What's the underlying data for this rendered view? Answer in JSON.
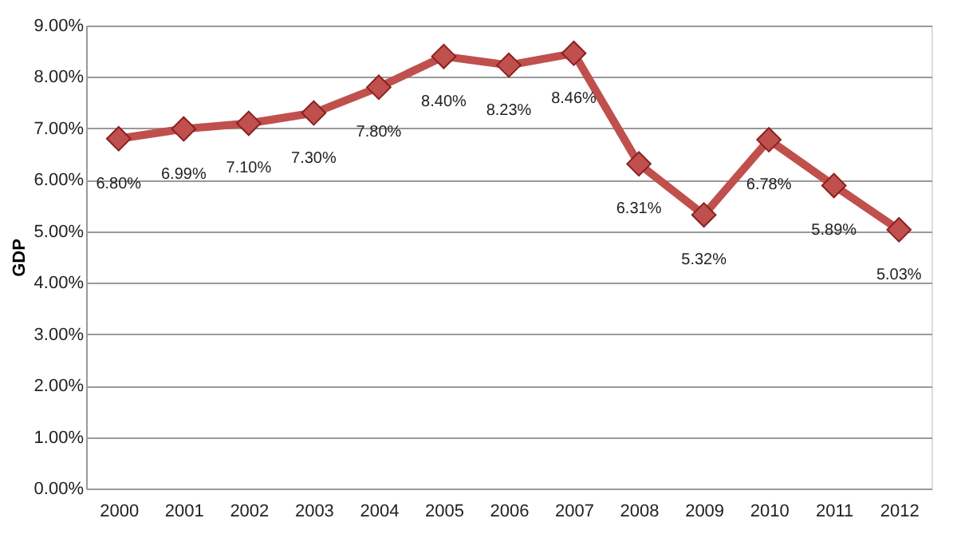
{
  "chart_data": {
    "type": "line",
    "ylabel": "GDP",
    "categories": [
      "2000",
      "2001",
      "2002",
      "2003",
      "2004",
      "2005",
      "2006",
      "2007",
      "2008",
      "2009",
      "2010",
      "2011",
      "2012"
    ],
    "series": [
      {
        "color": "#c0504d",
        "values": [
          6.8,
          6.99,
          7.1,
          7.3,
          7.8,
          8.4,
          8.23,
          8.46,
          6.31,
          5.32,
          6.78,
          5.89,
          5.03
        ],
        "value_labels": [
          "6.80%",
          "6.99%",
          "7.10%",
          "7.30%",
          "7.80%",
          "8.40%",
          "8.23%",
          "8.46%",
          "6.31%",
          "5.32%",
          "6.78%",
          "5.89%",
          "5.03%"
        ]
      }
    ],
    "ylim": [
      0,
      9
    ],
    "yticks": [
      {
        "value": 0,
        "label": "0.00%"
      },
      {
        "value": 1,
        "label": "1.00%"
      },
      {
        "value": 2,
        "label": "2.00%"
      },
      {
        "value": 3,
        "label": "3.00%"
      },
      {
        "value": 4,
        "label": "4.00%"
      },
      {
        "value": 5,
        "label": "5.00%"
      },
      {
        "value": 6,
        "label": "6.00%"
      },
      {
        "value": 7,
        "label": "7.00%"
      },
      {
        "value": 8,
        "label": "8.00%"
      },
      {
        "value": 9,
        "label": "9.00%"
      }
    ],
    "grid": "y",
    "marker": "diamond",
    "line_style": "solid"
  }
}
